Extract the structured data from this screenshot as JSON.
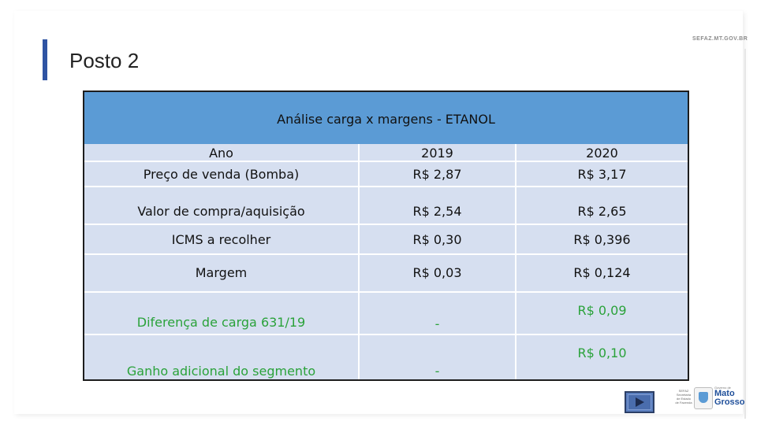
{
  "slide": {
    "title": "Posto 2",
    "site": "SEFAZ.MT.GOV.BR"
  },
  "table": {
    "header": "Análise carga x margens - ETANOL",
    "columns": [
      "Ano",
      "2019",
      "2020"
    ],
    "rows": [
      {
        "label": "Preço de venda (Bomba)",
        "y2019": "R$ 2,87",
        "y2020": "R$ 3,17"
      },
      {
        "label": "Valor de compra/aquisição",
        "y2019": "R$ 2,54",
        "y2020": "R$ 2,65"
      },
      {
        "label": "ICMS a recolher",
        "y2019": "R$ 0,30",
        "y2020": "R$ 0,396"
      },
      {
        "label": "Margem",
        "y2019": "R$ 0,03",
        "y2020": "R$ 0,124"
      },
      {
        "label": "Diferença de carga 631/19",
        "y2019": "-",
        "y2020": "R$ 0,09"
      },
      {
        "label": "Ganho adicional do segmento",
        "y2019": "-",
        "y2020": "R$ 0,10"
      }
    ]
  },
  "logo": {
    "small_text": "SEFAZ Secretaria de Estado de Fazenda",
    "line1": "Governo de",
    "line2": "Mato",
    "line3": "Grosso"
  },
  "colors": {
    "header_bg": "#5b9bd5",
    "row_bg": "#d6dff0",
    "accent_bar": "#2f54a3",
    "highlight_green": "#2aa23a"
  },
  "icons": {
    "next_slide": "play-triangle-icon"
  }
}
